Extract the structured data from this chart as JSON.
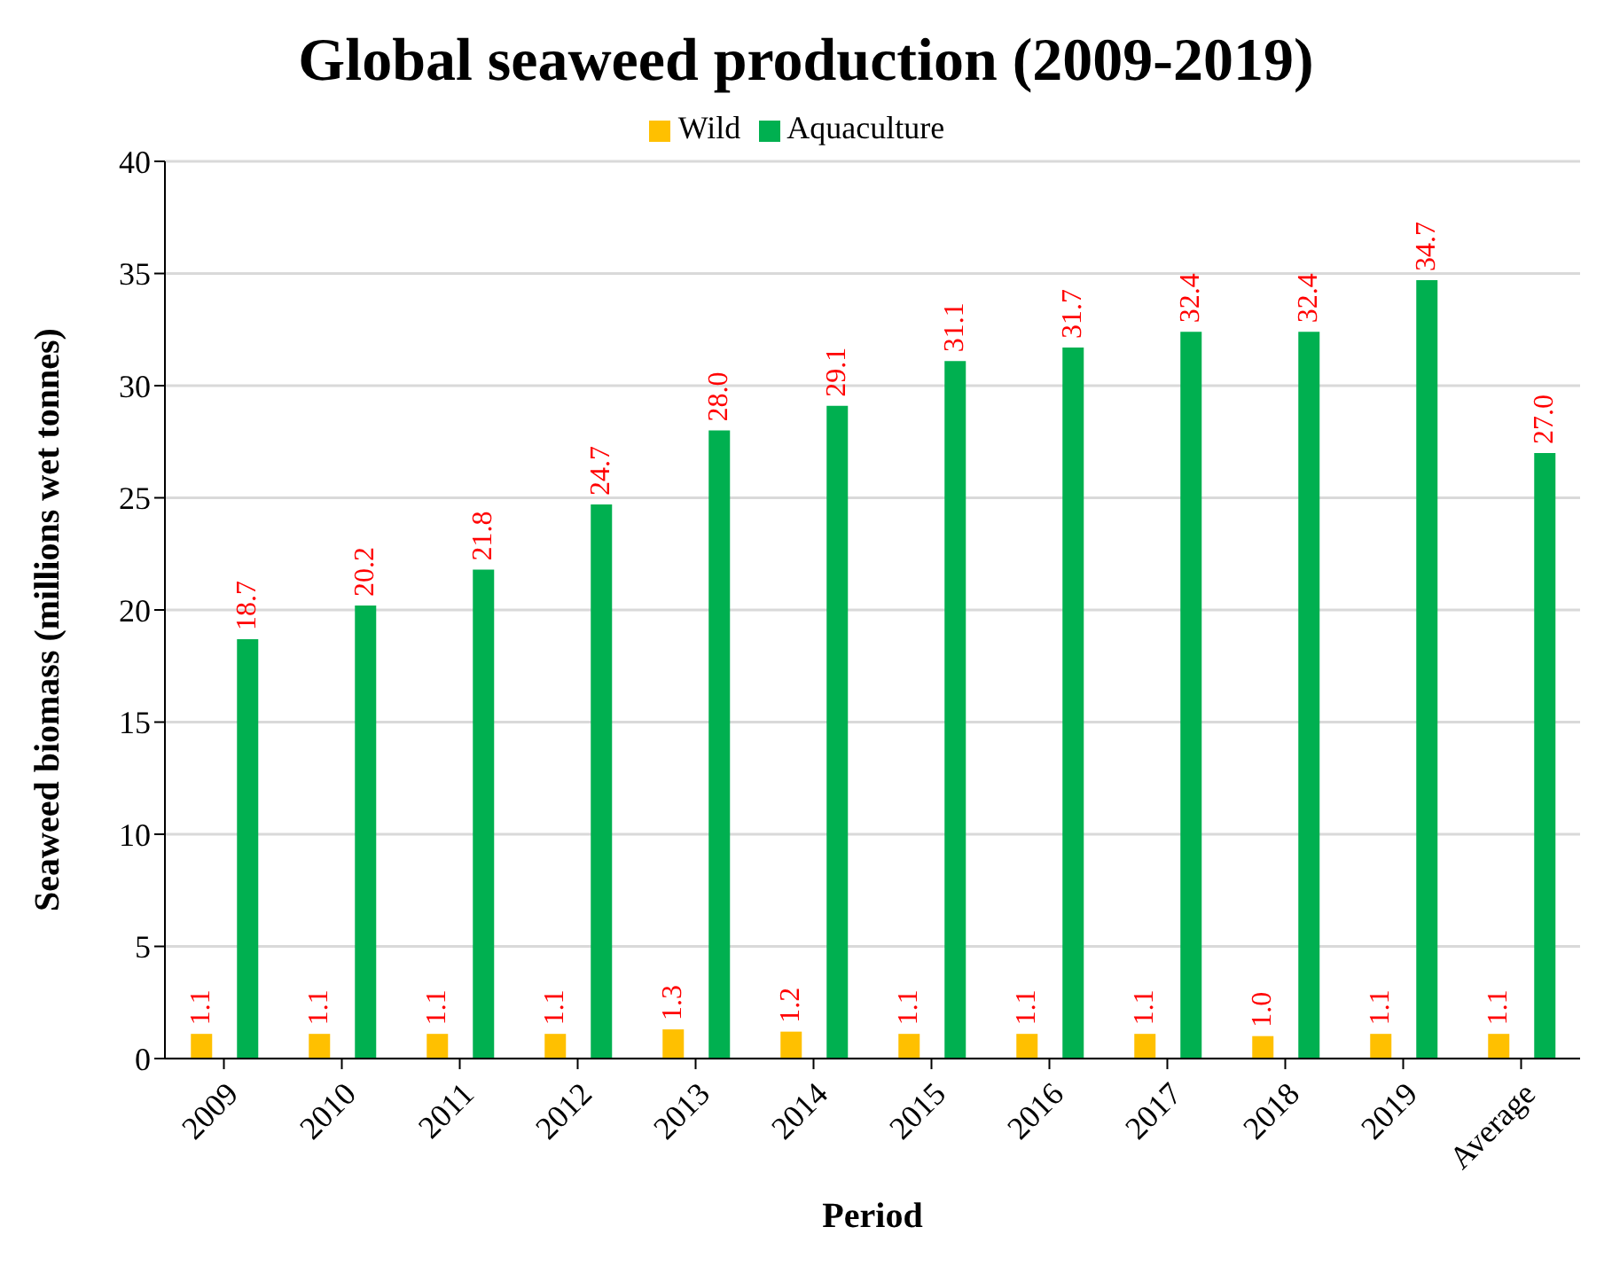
{
  "chart_data": {
    "type": "bar",
    "title": "Global seaweed production (2009-2019)",
    "xlabel": "Period",
    "ylabel": "Seaweed biomass (millions wet tonnes)",
    "categories": [
      "2009",
      "2010",
      "2011",
      "2012",
      "2013",
      "2014",
      "2015",
      "2016",
      "2017",
      "2018",
      "2019",
      "Average"
    ],
    "series": [
      {
        "name": "Wild",
        "color": "#ffc000",
        "values": [
          1.1,
          1.1,
          1.1,
          1.1,
          1.3,
          1.2,
          1.1,
          1.1,
          1.1,
          1.0,
          1.1,
          1.1
        ],
        "value_labels": [
          "1.1",
          "1.1",
          "1.1",
          "1.1",
          "1.3",
          "1.2",
          "1.1",
          "1.1",
          "1.1",
          "1.0",
          "1.1",
          "1.1"
        ]
      },
      {
        "name": "Aquaculture",
        "color": "#00b050",
        "values": [
          18.7,
          20.2,
          21.8,
          24.7,
          28.0,
          29.1,
          31.1,
          31.7,
          32.4,
          32.4,
          34.7,
          27.0
        ],
        "value_labels": [
          "18.7",
          "20.2",
          "21.8",
          "24.7",
          "28.0",
          "29.1",
          "31.1",
          "31.7",
          "32.4",
          "32.4",
          "34.7",
          "27.0"
        ]
      }
    ],
    "ylim": [
      0,
      40
    ],
    "yticks": [
      0,
      5,
      10,
      15,
      20,
      25,
      30,
      35,
      40
    ],
    "grid": "y",
    "legend": "top"
  }
}
